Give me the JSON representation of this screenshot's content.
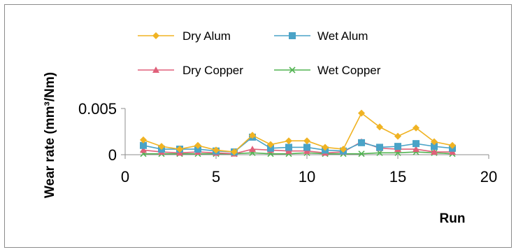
{
  "chart_data": {
    "type": "line",
    "xlabel": "Run",
    "ylabel": "Wear rate  (mm³/Nm)",
    "xlim": [
      0,
      20
    ],
    "ylim": [
      0,
      0.005
    ],
    "xticks": [
      0,
      5,
      10,
      15,
      20
    ],
    "yticks": [
      {
        "value": 0,
        "label": "0"
      },
      {
        "value": 0.005,
        "label": "0.005"
      }
    ],
    "grid": false,
    "legend_position": "top",
    "x": [
      1,
      2,
      3,
      4,
      5,
      6,
      7,
      8,
      9,
      10,
      11,
      12,
      13,
      14,
      15,
      16,
      17,
      18
    ],
    "series": [
      {
        "name": "Dry Alum",
        "color": "#f0b323",
        "marker": "diamond",
        "values": [
          0.0016,
          0.0009,
          0.0006,
          0.001,
          0.0005,
          0.0003,
          0.0021,
          0.0011,
          0.0015,
          0.0015,
          0.0008,
          0.0006,
          0.0045,
          0.003,
          0.002,
          0.0029,
          0.0014,
          0.001
        ]
      },
      {
        "name": "Wet Alum",
        "color": "#4aa3c7",
        "marker": "square",
        "values": [
          0.001,
          0.0006,
          0.0006,
          0.0006,
          0.0004,
          0.0003,
          0.0019,
          0.0007,
          0.0008,
          0.0008,
          0.0005,
          0.0004,
          0.0013,
          0.0008,
          0.0009,
          0.0012,
          0.0009,
          0.0007
        ]
      },
      {
        "name": "Dry Copper",
        "color": "#e0607a",
        "marker": "triangle",
        "values": [
          0.0005,
          0.0003,
          0.0002,
          0.0003,
          0.0002,
          0.0001,
          0.0006,
          0.0005,
          0.0004,
          0.0004,
          0.0002,
          0.0003,
          0.0014,
          0.0007,
          0.0006,
          0.0006,
          0.0003,
          0.0003
        ]
      },
      {
        "name": "Wet Copper",
        "color": "#52b352",
        "marker": "x",
        "values": [
          0.0001,
          0.0001,
          0.0001,
          0.0001,
          0.0001,
          0.0001,
          0.0002,
          0.0001,
          0.0001,
          0.0002,
          0.0001,
          0.0001,
          0.0001,
          0.0002,
          0.0002,
          0.0003,
          0.0002,
          0.0001
        ]
      }
    ]
  }
}
